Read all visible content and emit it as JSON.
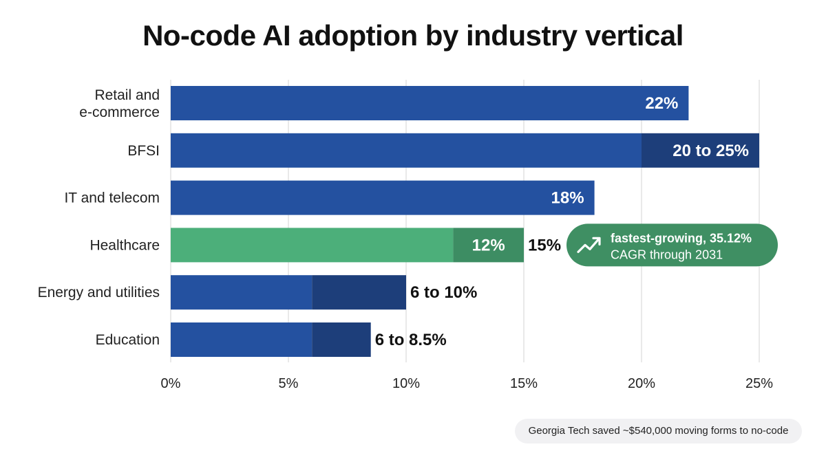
{
  "chart": {
    "title": "No-code AI adoption by industry vertical"
  },
  "chart_data": {
    "type": "bar",
    "orientation": "horizontal",
    "title": "No-code AI adoption by industry vertical",
    "xlabel": "",
    "ylabel": "",
    "xlim": [
      0,
      25
    ],
    "x_ticks": [
      "0%",
      "5%",
      "10%",
      "15%",
      "20%",
      "25%"
    ],
    "x_tick_values": [
      0,
      5,
      10,
      15,
      20,
      25
    ],
    "grid": true,
    "legend": "none",
    "categories": [
      [
        "Retail and",
        "e-commerce"
      ],
      [
        "BFSI"
      ],
      [
        "IT and telecom"
      ],
      [
        "Healthcare"
      ],
      [
        "Energy and utilities"
      ],
      [
        "Education"
      ]
    ],
    "bars": [
      {
        "low": 22,
        "high": 22,
        "label": "22%",
        "highlight": false
      },
      {
        "low": 20,
        "high": 25,
        "label": "20 to 25%",
        "highlight": false
      },
      {
        "low": 18,
        "high": 18,
        "label": "18%",
        "highlight": false
      },
      {
        "low": 12,
        "high": 15,
        "label": "12%",
        "label_high": "15%",
        "highlight": true
      },
      {
        "low": 6,
        "high": 10,
        "label": "6 to 10%",
        "highlight": false
      },
      {
        "low": 6,
        "high": 8.5,
        "label": "6 to 8.5%",
        "highlight": false
      }
    ],
    "annotation": {
      "category": "Healthcare",
      "line1": "fastest-growing, 35.12%",
      "line2": "CAGR through 2031",
      "icon": "trending-up-icon"
    },
    "colors": {
      "bar": "#2451a0",
      "bar_range": "#1d3e7a",
      "highlight": "#4caf7a",
      "highlight_range": "#3d8d63",
      "annotation_bg": "#3f8f63",
      "grid": "#e2e2e2",
      "text": "#111111",
      "bar_label": "#ffffff"
    }
  },
  "footnote": {
    "text": "Georgia Tech saved ~$540,000 moving forms to no-code"
  }
}
